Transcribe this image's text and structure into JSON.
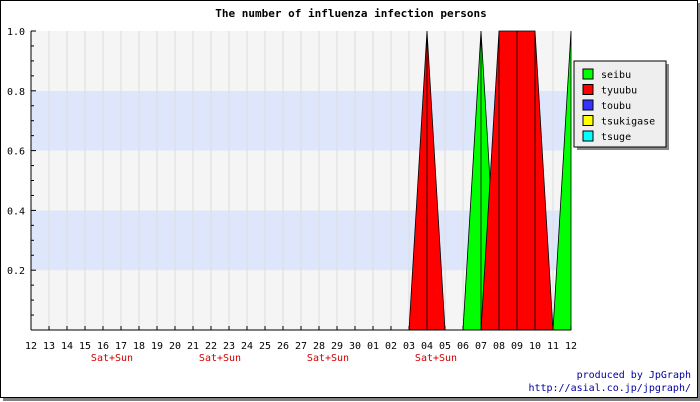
{
  "chart_data": {
    "type": "area",
    "title": "The number of influenza infection persons",
    "xlabel": "",
    "ylabel": "",
    "ylim": [
      0,
      1.0
    ],
    "yticks": [
      "0.2",
      "0.4",
      "0.6",
      "0.8",
      "1.0"
    ],
    "yticks_values": [
      0.2,
      0.4,
      0.6,
      0.8,
      1.0
    ],
    "categories": [
      "12",
      "13",
      "14",
      "15",
      "16",
      "17",
      "18",
      "19",
      "20",
      "21",
      "22",
      "23",
      "24",
      "25",
      "26",
      "27",
      "28",
      "29",
      "30",
      "01",
      "02",
      "03",
      "04",
      "05",
      "06",
      "07",
      "08",
      "09",
      "10",
      "11",
      "12"
    ],
    "weekend_labels": [
      {
        "text": "Sat+Sun",
        "at": 4.5
      },
      {
        "text": "Sat+Sun",
        "at": 10.5
      },
      {
        "text": "Sat+Sun",
        "at": 16.5
      },
      {
        "text": "Sat+Sun",
        "at": 22.5
      }
    ],
    "series": [
      {
        "name": "seibu",
        "color": "#00ff00",
        "values": [
          0,
          0,
          0,
          0,
          0,
          0,
          0,
          0,
          0,
          0,
          0,
          0,
          0,
          0,
          0,
          0,
          0,
          0,
          0,
          0,
          0,
          0,
          0,
          0,
          0,
          1,
          0,
          0,
          0,
          0,
          1
        ]
      },
      {
        "name": "tyuubu",
        "color": "#ff0000",
        "values": [
          0,
          0,
          0,
          0,
          0,
          0,
          0,
          0,
          0,
          0,
          0,
          0,
          0,
          0,
          0,
          0,
          0,
          0,
          0,
          0,
          0,
          0,
          1,
          0,
          0,
          0,
          1,
          1,
          1,
          0,
          0
        ]
      },
      {
        "name": "toubu",
        "color": "#3333ff",
        "values": [
          0,
          0,
          0,
          0,
          0,
          0,
          0,
          0,
          0,
          0,
          0,
          0,
          0,
          0,
          0,
          0,
          0,
          0,
          0,
          0,
          0,
          0,
          0,
          0,
          0,
          0,
          0,
          0,
          0,
          0,
          0
        ]
      },
      {
        "name": "tsukigase",
        "color": "#ffff00",
        "values": [
          0,
          0,
          0,
          0,
          0,
          0,
          0,
          0,
          0,
          0,
          0,
          0,
          0,
          0,
          0,
          0,
          0,
          0,
          0,
          0,
          0,
          0,
          0,
          0,
          0,
          0,
          0,
          0,
          0,
          0,
          0
        ]
      },
      {
        "name": "tsuge",
        "color": "#00ffff",
        "values": [
          0,
          0,
          0,
          0,
          0,
          0,
          0,
          0,
          0,
          0,
          0,
          0,
          0,
          0,
          0,
          0,
          0,
          0,
          0,
          0,
          0,
          0,
          0,
          0,
          0,
          0,
          0,
          0,
          0,
          0,
          0
        ]
      }
    ],
    "grid": true,
    "band_colors": [
      "#dde6fa",
      "#f5f5f5"
    ],
    "legend_position": "right"
  },
  "footer": {
    "credit_line1": "produced by JpGraph",
    "credit_line2": "http://asial.co.jp/jpgraph/"
  }
}
